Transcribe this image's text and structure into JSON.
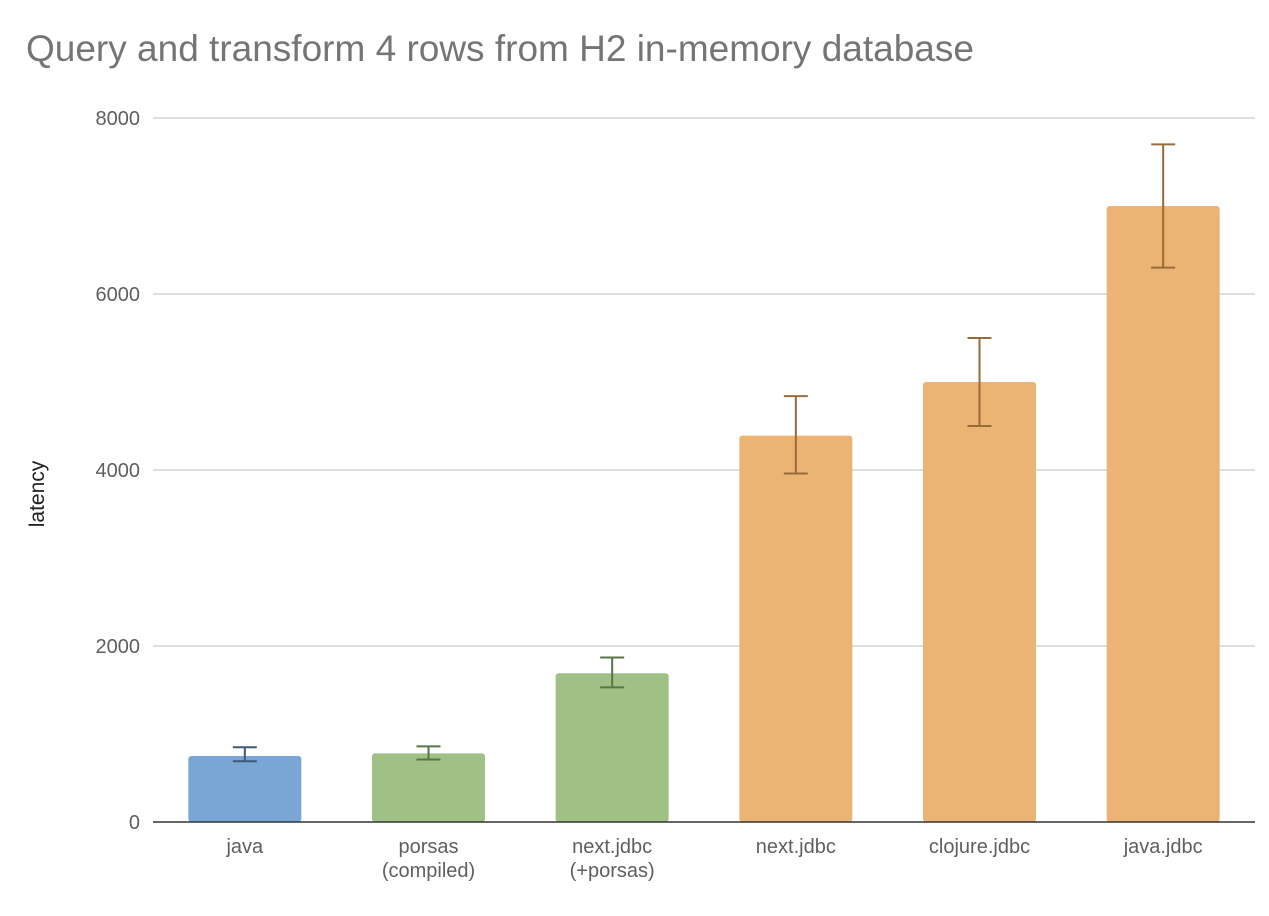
{
  "chart_data": {
    "type": "bar",
    "title": "Query and transform 4 rows from H2 in-memory database",
    "xlabel": "",
    "ylabel": "latency",
    "ylim": [
      0,
      8000
    ],
    "yticks": [
      0,
      2000,
      4000,
      6000,
      8000
    ],
    "grid": true,
    "legend": "none",
    "categories": [
      [
        "java"
      ],
      [
        "porsas",
        "(compiled)"
      ],
      [
        "next.jdbc",
        "(+porsas)"
      ],
      [
        "next.jdbc"
      ],
      [
        "clojure.jdbc"
      ],
      [
        "java.jdbc"
      ]
    ],
    "values": [
      750,
      780,
      1690,
      4390,
      5000,
      7000
    ],
    "error_low": [
      690,
      710,
      1530,
      3960,
      4500,
      6300
    ],
    "error_high": [
      850,
      860,
      1870,
      4840,
      5500,
      7700
    ],
    "colors": {
      "bars": [
        "#7aa6d6",
        "#9fc185",
        "#9fc185",
        "#ebb474",
        "#ebb474",
        "#ebb474"
      ],
      "error_bars": [
        "#3d5a78",
        "#5a7546",
        "#5a7546",
        "#9a6b3a",
        "#9a6b3a",
        "#9a6b3a"
      ],
      "grid": "#cccccc",
      "baseline": "#333333",
      "title": "#757575",
      "tick_text": "#5f5f5f"
    }
  }
}
